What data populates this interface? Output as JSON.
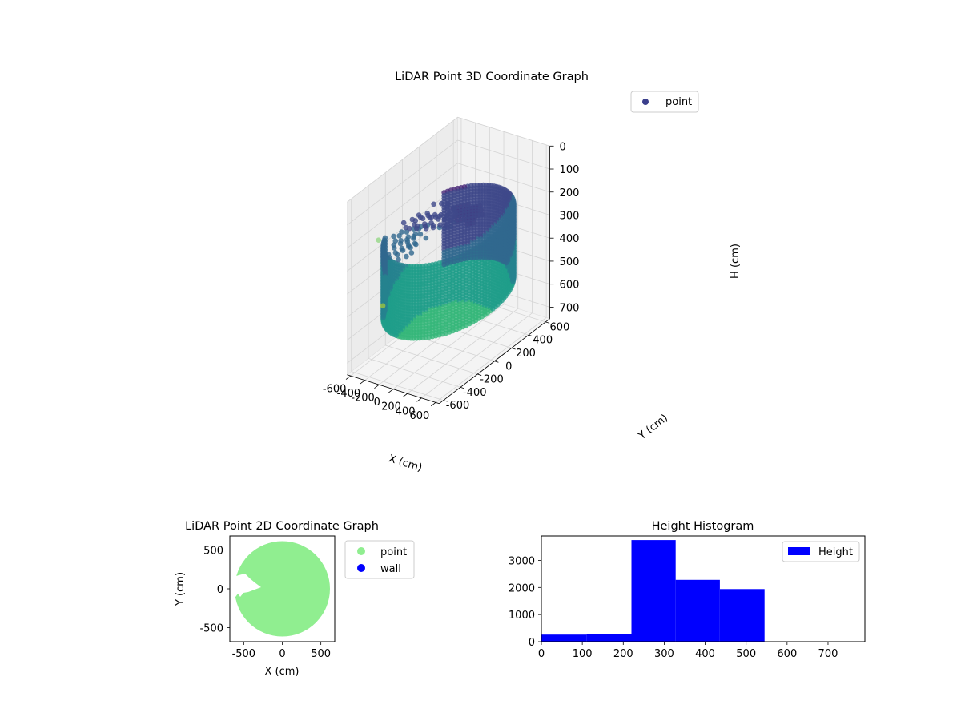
{
  "chart_data": [
    {
      "type": "scatter",
      "projection": "3d",
      "title": "LiDAR Point 3D Coordinate Graph",
      "xlabel": "X (cm)",
      "ylabel": "Y (cm)",
      "zlabel": "H (cm)",
      "xlim": [
        -650,
        650
      ],
      "ylim": [
        -650,
        650
      ],
      "zlim": [
        750,
        0
      ],
      "z_axis_inverted": true,
      "xticks": [
        "-600",
        "-400",
        "-200",
        "0",
        "200",
        "400",
        "600"
      ],
      "yticks": [
        "-600",
        "-400",
        "-200",
        "0",
        "200",
        "400",
        "600"
      ],
      "zticks": [
        "0",
        "100",
        "200",
        "300",
        "400",
        "500",
        "600",
        "700"
      ],
      "series": [
        {
          "name": "point",
          "color": "#3b3f8c",
          "colormap": "viridis"
        }
      ],
      "shape": "cylindrical wall of points, radius about 600 cm, heights about 220 to 550 cm, with an opening on the -X side",
      "legend_position": "top-right",
      "grid": true
    },
    {
      "type": "scatter",
      "title": "LiDAR Point 2D Coordinate Graph",
      "xlabel": "X (cm)",
      "ylabel": "Y (cm)",
      "xlim": [
        -680,
        680
      ],
      "ylim": [
        -680,
        680
      ],
      "xticks": [
        "-500",
        "0",
        "500"
      ],
      "yticks": [
        "-500",
        "0",
        "500"
      ],
      "series": [
        {
          "name": "point",
          "color": "#90ee90"
        },
        {
          "name": "wall",
          "color": "#0000ff"
        }
      ],
      "legend_position": "outside right"
    },
    {
      "type": "bar",
      "title": "Height Histogram",
      "xlim": [
        0,
        790
      ],
      "ylim": [
        0,
        3900
      ],
      "xticks": [
        "0",
        "100",
        "200",
        "300",
        "400",
        "500",
        "600",
        "700"
      ],
      "yticks": [
        "0",
        "1000",
        "2000",
        "3000"
      ],
      "bins": [
        {
          "from": 0,
          "to": 110,
          "count": 260
        },
        {
          "from": 110,
          "to": 220,
          "count": 290
        },
        {
          "from": 220,
          "to": 328,
          "count": 3750
        },
        {
          "from": 328,
          "to": 436,
          "count": 2280
        },
        {
          "from": 436,
          "to": 545,
          "count": 1940
        },
        {
          "from": 545,
          "to": 790,
          "count": 0
        }
      ],
      "series": [
        {
          "name": "Height",
          "color": "#0000ff"
        }
      ],
      "legend_position": "top-right"
    }
  ]
}
